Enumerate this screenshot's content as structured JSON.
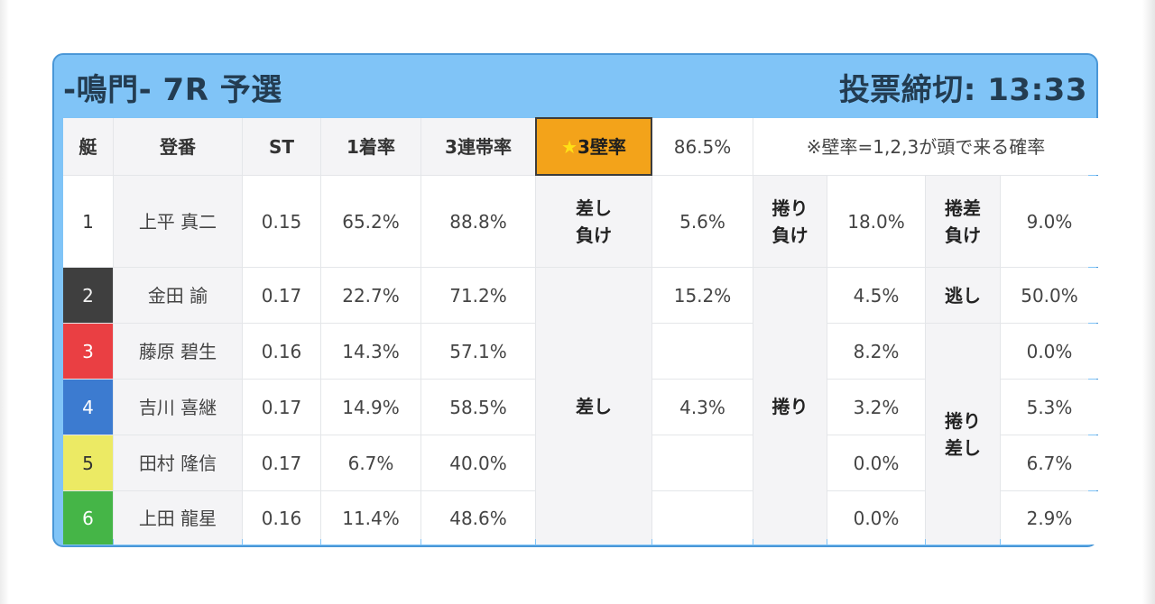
{
  "header": {
    "title": "-鳴門- 7R 予選",
    "deadline_label": "投票締切:",
    "deadline_time": "13:33"
  },
  "table": {
    "columns": {
      "boat": "艇",
      "reg": "登番",
      "st": "ST",
      "first_rate": "1着率",
      "top3_rate": "3連帯率",
      "wall_star": "★",
      "wall_label": "3壁率",
      "wall_value": "86.5%",
      "wall_note": "※壁率=1,2,3が頭で来る確率"
    },
    "rows": [
      {
        "lane": "1",
        "name": "上平 真二",
        "st": "0.15",
        "first": "65.2%",
        "top3": "88.8%"
      },
      {
        "lane": "2",
        "name": "金田 諭",
        "st": "0.17",
        "first": "22.7%",
        "top3": "71.2%"
      },
      {
        "lane": "3",
        "name": "藤原 碧生",
        "st": "0.16",
        "first": "14.3%",
        "top3": "57.1%"
      },
      {
        "lane": "4",
        "name": "吉川 喜継",
        "st": "0.17",
        "first": "14.9%",
        "top3": "58.5%"
      },
      {
        "lane": "5",
        "name": "田村 隆信",
        "st": "0.17",
        "first": "6.7%",
        "top3": "40.0%"
      },
      {
        "lane": "6",
        "name": "上田 龍星",
        "st": "0.16",
        "first": "11.4%",
        "top3": "48.6%"
      }
    ],
    "patterns": {
      "sashi_make": {
        "label": "差し\n負け",
        "value": "5.6%"
      },
      "makuri_make": {
        "label": "捲り\n負け",
        "value": "18.0%"
      },
      "makurisashi_make": {
        "label": "捲差\n負け",
        "value": "9.0%"
      },
      "sashi": {
        "label": "差し",
        "value_lane2": "15.2%",
        "value_lane4": "4.3%"
      },
      "makuri": {
        "label": "捲り",
        "values": [
          "4.5%",
          "8.2%",
          "3.2%",
          "0.0%",
          "0.0%"
        ]
      },
      "nige": {
        "label": "逃し",
        "value": "50.0%"
      },
      "makurisashi": {
        "label": "捲り\n差し",
        "values": [
          "0.0%",
          "5.3%",
          "6.7%",
          "2.9%"
        ]
      }
    }
  },
  "colors": {
    "frame": "#80c4f7",
    "highlight": "#f3a31a",
    "lane1": "#ffffff",
    "lane2": "#3f3f3f",
    "lane3": "#ea3f43",
    "lane4": "#3c7bd0",
    "lane5": "#ecea64",
    "lane6": "#45b547"
  }
}
